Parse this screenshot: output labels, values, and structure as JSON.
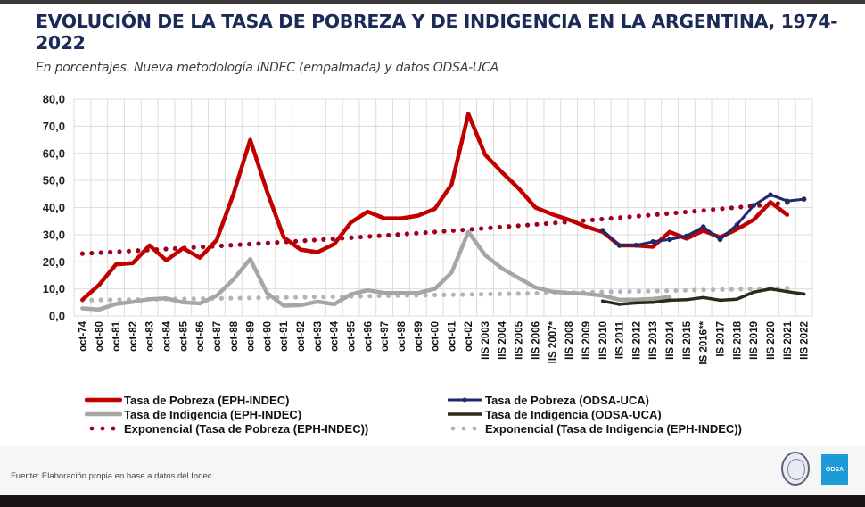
{
  "header": {
    "title": "EVOLUCIÓN DE LA TASA DE POBREZA Y DE INDIGENCIA EN LA ARGENTINA, 1974-2022",
    "subtitle": "En porcentajes. Nueva metodología INDEC (empalmada) y datos ODSA-UCA"
  },
  "footer": {
    "source": "Fuente: Elaboración propia en base a datos del Indec",
    "logo_label": "ODSA",
    "seal_icon": "university-seal-icon"
  },
  "colors": {
    "pobreza_eph": "#c00000",
    "indigencia_eph": "#a6a6a6",
    "pobreza_odsa": "#1f2a6b",
    "indigencia_odsa": "#2b2b1a",
    "trend_pobreza": "#a00020",
    "trend_indigencia": "#a6a6a6",
    "title": "#1b2a56",
    "odsa_brand": "#1e9ad6"
  },
  "chart_data": {
    "type": "line",
    "title": "EVOLUCIÓN DE LA TASA DE POBREZA Y DE INDIGENCIA EN LA ARGENTINA, 1974-2022",
    "subtitle": "En porcentajes. Nueva metodología INDEC (empalmada) y datos ODSA-UCA",
    "xlabel": "",
    "ylabel": "",
    "ylim": [
      0,
      80
    ],
    "yticks": [
      "0,0",
      "10,0",
      "20,0",
      "30,0",
      "40,0",
      "50,0",
      "60,0",
      "70,0",
      "80,0"
    ],
    "ytick_values": [
      0,
      10,
      20,
      30,
      40,
      50,
      60,
      70,
      80
    ],
    "grid": true,
    "legend_position": "bottom",
    "categories": [
      "oct-74",
      "oct-80",
      "oct-81",
      "oct-82",
      "oct-83",
      "oct-84",
      "oct-85",
      "oct-86",
      "oct-87",
      "oct-88",
      "oct-89",
      "oct-90",
      "oct-91",
      "oct-92",
      "oct-93",
      "oct-94",
      "oct-95",
      "oct-96",
      "oct-97",
      "oct-98",
      "oct-99",
      "oct-00",
      "oct-01",
      "oct-02",
      "IIS 2003",
      "IIS 2004",
      "IIS 2005",
      "IIS 2006",
      "IIS 2007*",
      "IIS 2008",
      "IIS 2009",
      "IIS 2010",
      "IIS 2011",
      "IIS 2012",
      "IIS 2013",
      "IIS 2014",
      "IIS 2015",
      "IS 2016**",
      "IS 2017",
      "IIS 2018",
      "IIS 2019",
      "IIS 2020",
      "IIS 2021",
      "IIS 2022"
    ],
    "series": [
      {
        "name": "Tasa de Pobreza (EPH-INDEC)",
        "style": "line",
        "values": [
          6.0,
          11.5,
          19.0,
          19.5,
          26.0,
          20.5,
          25.0,
          21.5,
          28.0,
          45.0,
          65.0,
          46.0,
          29.0,
          24.5,
          23.5,
          26.5,
          34.5,
          38.5,
          36.0,
          36.0,
          37.0,
          39.5,
          48.5,
          74.5,
          59.5,
          53.0,
          47.0,
          40.0,
          37.5,
          35.5,
          33.0,
          31.0,
          26.0,
          26.0,
          25.5,
          31.0,
          28.5,
          31.5,
          29.0,
          32.0,
          35.5,
          42.0,
          37.3,
          null
        ]
      },
      {
        "name": "Tasa de Indigencia (EPH-INDEC)",
        "style": "line",
        "values": [
          2.8,
          2.4,
          4.4,
          5.2,
          6.2,
          6.5,
          5.0,
          4.6,
          7.5,
          13.5,
          21.0,
          8.5,
          3.8,
          4.0,
          5.3,
          4.3,
          8.0,
          9.5,
          8.5,
          8.5,
          8.5,
          10.0,
          16.0,
          31.0,
          22.5,
          17.5,
          14.0,
          10.5,
          9.0,
          8.5,
          8.2,
          7.5,
          6.0,
          6.0,
          6.3,
          7.0,
          null,
          null,
          null,
          null,
          null,
          null,
          null,
          null
        ]
      },
      {
        "name": "Tasa de Pobreza (ODSA-UCA)",
        "style": "line-markers",
        "values": [
          null,
          null,
          null,
          null,
          null,
          null,
          null,
          null,
          null,
          null,
          null,
          null,
          null,
          null,
          null,
          null,
          null,
          null,
          null,
          null,
          null,
          null,
          null,
          null,
          null,
          null,
          null,
          null,
          null,
          null,
          null,
          31.6,
          26.0,
          26.1,
          27.4,
          28.2,
          29.5,
          32.9,
          28.2,
          33.6,
          40.8,
          44.7,
          42.4,
          43.1
        ]
      },
      {
        "name": "Tasa de Indigencia (ODSA-UCA)",
        "style": "line-markers",
        "values": [
          null,
          null,
          null,
          null,
          null,
          null,
          null,
          null,
          null,
          null,
          null,
          null,
          null,
          null,
          null,
          null,
          null,
          null,
          null,
          null,
          null,
          null,
          null,
          null,
          null,
          null,
          null,
          null,
          null,
          null,
          null,
          5.5,
          4.3,
          4.8,
          5.0,
          5.8,
          6.0,
          6.8,
          5.8,
          6.2,
          8.8,
          10.0,
          9.0,
          8.1
        ]
      },
      {
        "name": "Exponencial (Tasa de Pobreza (EPH-INDEC))",
        "style": "dotted-trend",
        "start": 23.0,
        "end": 41.8,
        "range": [
          "oct-74",
          "IIS 2021"
        ]
      },
      {
        "name": "Exponencial (Tasa de Indigencia (EPH-INDEC))",
        "style": "dotted-trend",
        "start": 5.8,
        "end": 10.3,
        "range": [
          "oct-74",
          "IIS 2021"
        ]
      }
    ],
    "legend": [
      {
        "label": "Tasa de Pobreza (EPH-INDEC)",
        "series": 0
      },
      {
        "label": "Tasa de Pobreza (ODSA-UCA)",
        "series": 2
      },
      {
        "label": "Tasa de Indigencia (EPH-INDEC)",
        "series": 1
      },
      {
        "label": "Tasa de Indigencia (ODSA-UCA)",
        "series": 3
      },
      {
        "label": "Exponencial (Tasa de Pobreza (EPH-INDEC))",
        "series": 4
      },
      {
        "label": "Exponencial (Tasa de Indigencia (EPH-INDEC))",
        "series": 5
      }
    ]
  }
}
